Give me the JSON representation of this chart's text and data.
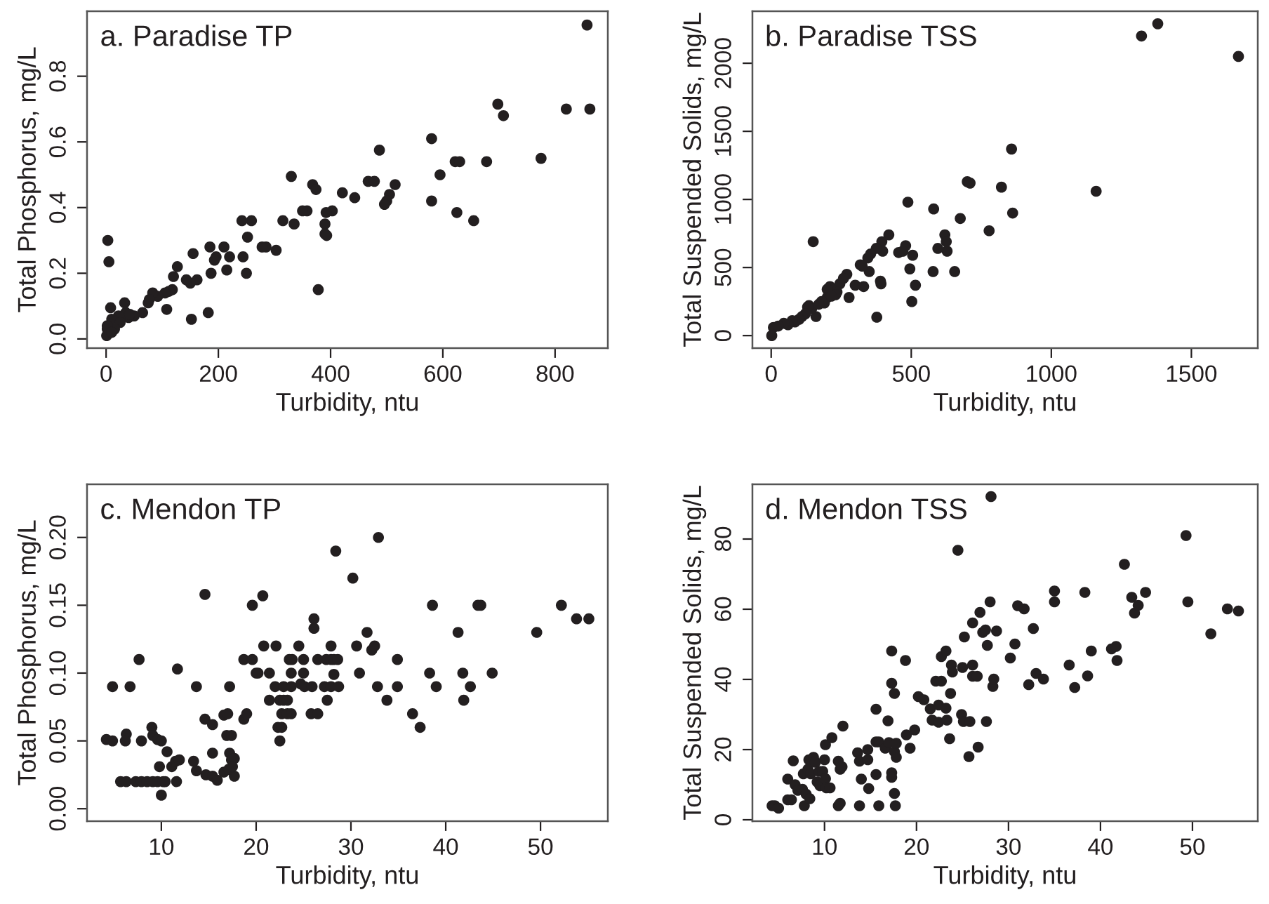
{
  "chart_data": [
    {
      "type": "scatter",
      "title": "a. Paradise TP",
      "xlabel": "Turbidity, ntu",
      "ylabel": "Total Phosphorus, mg/L",
      "marker": "circle",
      "grid": false,
      "xlim": [
        -34,
        894
      ],
      "ylim": [
        -0.028,
        0.998
      ],
      "xticks": [
        0,
        200,
        400,
        600,
        800
      ],
      "yticks": [
        {
          "value": 0,
          "label": "0.0"
        },
        {
          "value": 0.2,
          "label": "0.2"
        },
        {
          "value": 0.4,
          "label": "0.4"
        },
        {
          "value": 0.6,
          "label": "0.6"
        },
        {
          "value": 0.8,
          "label": "0.8"
        }
      ],
      "series": [
        {
          "color": "#231f20",
          "x": [
            857,
            862,
            820,
            698,
            708,
            775,
            678,
            622,
            630,
            580,
            595,
            580,
            625,
            655,
            487,
            467,
            478,
            515,
            505,
            500,
            496,
            443,
            421,
            403,
            392,
            390,
            390,
            393,
            378,
            368,
            374,
            358,
            350,
            330,
            335,
            315,
            303,
            285,
            278,
            259,
            242,
            252,
            244,
            250,
            220,
            210,
            215,
            196,
            193,
            185,
            187,
            182,
            155,
            152,
            162,
            150,
            143,
            127,
            120,
            118,
            112,
            105,
            108,
            92,
            83,
            75,
            77,
            65,
            50,
            40,
            35,
            33,
            22,
            10,
            2,
            8,
            3,
            5,
            25,
            15,
            42,
            1,
            2,
            10
          ],
          "values": [
            0.956,
            0.7,
            0.7,
            0.715,
            0.68,
            0.55,
            0.54,
            0.54,
            0.54,
            0.61,
            0.5,
            0.42,
            0.385,
            0.36,
            0.575,
            0.48,
            0.48,
            0.47,
            0.44,
            0.42,
            0.41,
            0.43,
            0.445,
            0.39,
            0.385,
            0.35,
            0.32,
            0.315,
            0.15,
            0.47,
            0.455,
            0.39,
            0.39,
            0.495,
            0.35,
            0.36,
            0.27,
            0.28,
            0.28,
            0.36,
            0.36,
            0.31,
            0.25,
            0.2,
            0.25,
            0.28,
            0.21,
            0.25,
            0.24,
            0.28,
            0.2,
            0.08,
            0.26,
            0.06,
            0.18,
            0.17,
            0.18,
            0.22,
            0.19,
            0.15,
            0.145,
            0.14,
            0.09,
            0.13,
            0.14,
            0.11,
            0.12,
            0.08,
            0.07,
            0.065,
            0.08,
            0.11,
            0.07,
            0.06,
            0.03,
            0.095,
            0.3,
            0.235,
            0.05,
            0.03,
            0.075,
            0.01,
            0.04,
            0.02
          ]
        }
      ]
    },
    {
      "type": "scatter",
      "title": "b. Paradise TSS",
      "xlabel": "Turbidity, ntu",
      "ylabel": "Total Suspended Solids, mg/L",
      "marker": "circle",
      "grid": false,
      "xlim": [
        -67,
        1737
      ],
      "ylim": [
        -92,
        2382
      ],
      "xticks": [
        0,
        500,
        1000,
        1500
      ],
      "yticks": [
        0,
        500,
        1000,
        1500,
        2000
      ],
      "series": [
        {
          "color": "#231f20",
          "x": [
            1380,
            1322,
            1668,
            1160,
            858,
            862,
            822,
            700,
            710,
            778,
            675,
            580,
            488,
            620,
            625,
            628,
            595,
            655,
            578,
            505,
            480,
            455,
            470,
            420,
            395,
            398,
            375,
            390,
            392,
            377,
            355,
            345,
            350,
            330,
            318,
            325,
            300,
            278,
            270,
            258,
            245,
            235,
            210,
            200,
            200,
            190,
            180,
            160,
            145,
            135,
            130,
            122,
            110,
            100,
            85,
            75,
            60,
            45,
            8,
            25,
            150,
            502,
            515,
            495,
            230,
            215,
            170,
            2
          ],
          "values": [
            2290,
            2200,
            2050,
            1060,
            1370,
            900,
            1090,
            1130,
            1120,
            770,
            860,
            930,
            980,
            740,
            690,
            620,
            640,
            470,
            470,
            590,
            660,
            610,
            620,
            740,
            690,
            620,
            640,
            400,
            380,
            135,
            600,
            570,
            470,
            360,
            520,
            510,
            370,
            280,
            450,
            420,
            380,
            320,
            360,
            340,
            280,
            240,
            250,
            140,
            200,
            220,
            210,
            160,
            140,
            120,
            100,
            110,
            80,
            90,
            60,
            70,
            690,
            250,
            370,
            490,
            300,
            290,
            230,
            0
          ]
        }
      ]
    },
    {
      "type": "scatter",
      "title": "c. Mendon TP",
      "xlabel": "Turbidity, ntu",
      "ylabel": "Total Phosphorus, mg/L",
      "marker": "circle",
      "grid": false,
      "xlim": [
        2.16,
        57.1
      ],
      "ylim": [
        -0.0092,
        0.2392
      ],
      "xticks": [
        10,
        20,
        30,
        40,
        50
      ],
      "yticks": [
        {
          "value": 0,
          "label": "0.00"
        },
        {
          "value": 0.05,
          "label": "0.05"
        },
        {
          "value": 0.1,
          "label": "0.10"
        },
        {
          "value": 0.15,
          "label": "0.15"
        },
        {
          "value": 0.2,
          "label": "0.20"
        }
      ],
      "series": [
        {
          "color": "#231f20",
          "x": [
            4.2,
            4.85,
            4.85,
            6.7,
            6.3,
            6.2,
            7.65,
            7.9,
            9.0,
            9.1,
            9.6,
            10,
            10.6,
            9.8,
            10,
            11.7,
            11.1,
            11.5,
            11.9,
            11.6,
            5.7,
            6.3,
            7.3,
            7.9,
            8.5,
            9.1,
            9.6,
            10.2,
            10.4,
            13.4,
            13.7,
            13.7,
            14.7,
            14.6,
            14.6,
            15.4,
            15.4,
            15.4,
            15.9,
            16.6,
            17.0,
            17.2,
            16.9,
            17.4,
            17.2,
            17.4,
            17.7,
            16.6,
            17.1,
            17.7,
            17.5,
            18.7,
            19.0,
            18.7,
            19.6,
            19.6,
            20.7,
            20.0,
            20.2,
            20.8,
            21.4,
            21.4,
            22.1,
            22.0,
            22.3,
            22.5,
            22.7,
            22.5,
            22.9,
            23.3,
            22.9,
            23.7,
            22.7,
            23.3,
            23.5,
            23.8,
            23.7,
            23.7,
            24.5,
            25.0,
            25.0,
            24.7,
            25.1,
            25.9,
            26.1,
            26.1,
            25.8,
            26.5,
            26.5,
            27.2,
            27.4,
            27.9,
            27.5,
            27.9,
            28.2,
            28.6,
            28.2,
            27.9,
            28.7,
            28.4,
            30.2,
            30.6,
            30.9,
            31.7,
            32.2,
            32.5,
            32.9,
            32.8,
            33.8,
            34.9,
            34.9,
            36.5,
            37.3,
            38.3,
            38.6,
            39.0,
            41.3,
            41.8,
            41.9,
            42.6,
            43.4,
            43.7,
            44.9,
            49.6,
            52.2,
            53.8,
            55.1
          ],
          "values": [
            0.051,
            0.05,
            0.09,
            0.09,
            0.055,
            0.05,
            0.11,
            0.05,
            0.06,
            0.054,
            0.051,
            0.05,
            0.042,
            0.031,
            0.01,
            0.103,
            0.031,
            0.035,
            0.036,
            0.02,
            0.02,
            0.02,
            0.02,
            0.02,
            0.02,
            0.02,
            0.02,
            0.02,
            0.02,
            0.035,
            0.09,
            0.028,
            0.025,
            0.066,
            0.158,
            0.062,
            0.041,
            0.024,
            0.021,
            0.069,
            0.07,
            0.09,
            0.054,
            0.054,
            0.041,
            0.036,
            0.037,
            0.027,
            0.029,
            0.024,
            0.031,
            0.066,
            0.07,
            0.11,
            0.11,
            0.15,
            0.157,
            0.1,
            0.1,
            0.12,
            0.1,
            0.08,
            0.12,
            0.09,
            0.06,
            0.05,
            0.06,
            0.08,
            0.08,
            0.08,
            0.09,
            0.09,
            0.07,
            0.07,
            0.11,
            0.11,
            0.07,
            0.1,
            0.12,
            0.11,
            0.1,
            0.092,
            0.09,
            0.09,
            0.14,
            0.133,
            0.07,
            0.07,
            0.11,
            0.09,
            0.11,
            0.12,
            0.08,
            0.11,
            0.11,
            0.11,
            0.099,
            0.09,
            0.09,
            0.19,
            0.17,
            0.12,
            0.1,
            0.13,
            0.117,
            0.12,
            0.2,
            0.09,
            0.08,
            0.11,
            0.09,
            0.07,
            0.06,
            0.1,
            0.15,
            0.09,
            0.13,
            0.1,
            0.08,
            0.09,
            0.15,
            0.15,
            0.1,
            0.13,
            0.15,
            0.14,
            0.14
          ]
        }
      ]
    },
    {
      "type": "scatter",
      "title": "d. Mendon TSS",
      "xlabel": "Turbidity, ntu",
      "ylabel": "Total Suspended Solids, mg/L",
      "marker": "circle",
      "grid": false,
      "xlim": [
        2.16,
        57.1
      ],
      "ylim": [
        -0.4,
        95.6
      ],
      "xticks": [
        10,
        20,
        30,
        40,
        50
      ],
      "yticks": [
        0,
        20,
        40,
        60,
        80
      ],
      "series": [
        {
          "color": "#231f20",
          "x": [
            4.3,
            4.6,
            5.0,
            6.6,
            6.0,
            6.0,
            6.4,
            6.8,
            7.1,
            7.6,
            7.7,
            7.8,
            8.0,
            8.3,
            8.4,
            8.2,
            8.5,
            8.8,
            9.0,
            9.2,
            9.5,
            9.4,
            9.8,
            10.0,
            10.1,
            10.1,
            10.2,
            10.6,
            10.8,
            11.5,
            11.7,
            11.9,
            11.5,
            11.7,
            12.0,
            13.6,
            13.8,
            14.0,
            13.8,
            14.7,
            14.7,
            14.8,
            15.6,
            15.6,
            15.9,
            15.6,
            15.9,
            16.6,
            16.9,
            17.3,
            17.3,
            17.6,
            17.0,
            17.6,
            17.8,
            17.8,
            17.3,
            17.3,
            17.6,
            17.7,
            18.8,
            18.9,
            19.3,
            19.8,
            20.2,
            20.8,
            21.5,
            21.7,
            22.1,
            22.4,
            22.7,
            22.4,
            22.7,
            23.2,
            23.2,
            23.3,
            23.6,
            23.7,
            23.8,
            23.9,
            24.5,
            24.9,
            25.0,
            25.1,
            25.2,
            25.8,
            25.7,
            26.1,
            26.1,
            26.1,
            26.6,
            26.7,
            26.9,
            27.2,
            27.5,
            27.6,
            27.7,
            28.0,
            28.1,
            28.3,
            28.4,
            28.7,
            30.2,
            30.7,
            31.0,
            31.7,
            32.2,
            32.7,
            33.0,
            33.8,
            35.0,
            35.0,
            36.6,
            37.2,
            38.3,
            38.6,
            39.0,
            41.2,
            41.7,
            41.8,
            42.6,
            43.4,
            43.7,
            44.1,
            44.9,
            49.3,
            49.5,
            52.0,
            53.8,
            55.0
          ],
          "values": [
            4.0,
            4.0,
            3.3,
            16.8,
            11.6,
            5.7,
            5.7,
            10,
            8.4,
            8.7,
            13.1,
            4.0,
            7.3,
            17.1,
            6.0,
            14.4,
            13.1,
            17.8,
            16.4,
            10.8,
            9.7,
            13.8,
            13.8,
            17.1,
            21.4,
            11.7,
            9.1,
            9.1,
            23.4,
            16.7,
            14.4,
            15.1,
            4.0,
            4.7,
            26.7,
            19.1,
            16.7,
            11.6,
            4.0,
            20.0,
            17.1,
            8.9,
            31.5,
            22.2,
            22.2,
            12.9,
            4.0,
            20.4,
            28.2,
            48.1,
            38.9,
            36.0,
            22.0,
            19.4,
            21.8,
            17.8,
            13.4,
            12.1,
            7.5,
            4.0,
            45.4,
            24.2,
            20.4,
            25.6,
            35.1,
            34.2,
            31.6,
            28.4,
            39.5,
            27.8,
            39.5,
            32.7,
            46.5,
            48.1,
            31.8,
            28.4,
            23.1,
            36.0,
            44.1,
            42.1,
            76.8,
            30.0,
            43.4,
            28.0,
            52.1,
            28.0,
            18.0,
            44.1,
            40.9,
            56.1,
            40.9,
            20.7,
            59.1,
            53.4,
            54.1,
            28.0,
            49.7,
            62.1,
            92.1,
            38.0,
            40.1,
            53.8,
            46.1,
            50.1,
            61.0,
            60.1,
            38.5,
            54.5,
            41.7,
            40.1,
            65.2,
            62.1,
            44.1,
            37.7,
            64.8,
            41.0,
            48.1,
            48.7,
            49.4,
            45.4,
            72.8,
            63.4,
            58.9,
            61.1,
            64.8,
            81.0,
            62.1,
            53.0,
            60.1,
            59.5
          ]
        }
      ]
    }
  ]
}
